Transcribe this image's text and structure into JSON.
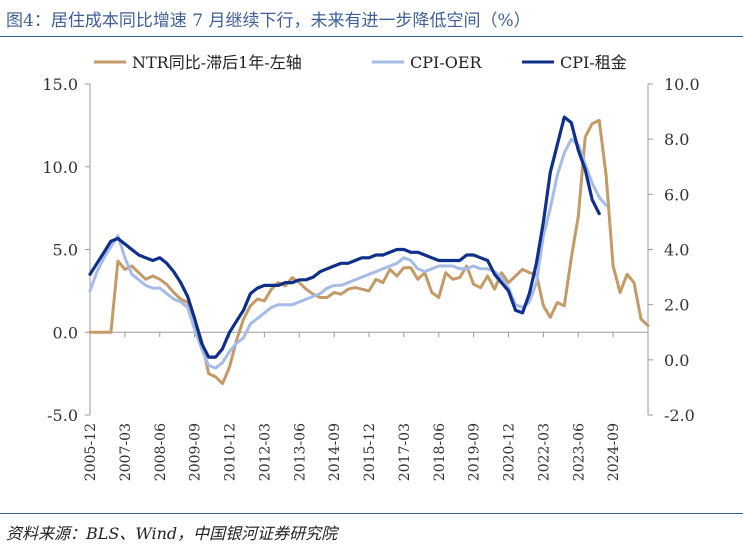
{
  "title": "图4：居住成本同比增速 7 月继续下行，未来有进一步降低空间（%）",
  "source": "资料来源：BLS、Wind，中国银河证券研究院",
  "chart_data": {
    "type": "line",
    "x_tick_labels": [
      "2005-12",
      "2007-03",
      "2008-06",
      "2009-09",
      "2010-12",
      "2012-03",
      "2013-06",
      "2014-09",
      "2015-12",
      "2017-03",
      "2018-06",
      "2019-09",
      "2020-12",
      "2022-03",
      "2023-06",
      "2024-09"
    ],
    "y_left": {
      "ticks": [
        "-5.0",
        "0.0",
        "5.0",
        "10.0",
        "15.0"
      ],
      "range": [
        -5,
        15
      ]
    },
    "y_right": {
      "ticks": [
        "-2.0",
        "0.0",
        "2.0",
        "4.0",
        "6.0",
        "8.0",
        "10.0"
      ],
      "range": [
        -2,
        10
      ]
    },
    "grid": false,
    "legend_position": "top",
    "series": [
      {
        "name": "NTR同比-滞后1年-左轴",
        "axis": "left",
        "color": "#c49a66",
        "points": [
          [
            "2005-12",
            0.0
          ],
          [
            "2006-03",
            0.0
          ],
          [
            "2006-06",
            0.0
          ],
          [
            "2006-09",
            0.0
          ],
          [
            "2006-12",
            4.3
          ],
          [
            "2007-03",
            3.8
          ],
          [
            "2007-06",
            4.0
          ],
          [
            "2007-09",
            3.6
          ],
          [
            "2007-12",
            3.2
          ],
          [
            "2008-03",
            3.4
          ],
          [
            "2008-06",
            3.2
          ],
          [
            "2008-09",
            2.9
          ],
          [
            "2008-12",
            2.4
          ],
          [
            "2009-03",
            2.0
          ],
          [
            "2009-06",
            1.8
          ],
          [
            "2009-09",
            0.8
          ],
          [
            "2009-12",
            -0.5
          ],
          [
            "2010-03",
            -2.5
          ],
          [
            "2010-06",
            -2.7
          ],
          [
            "2010-09",
            -3.1
          ],
          [
            "2010-12",
            -2.1
          ],
          [
            "2011-03",
            -0.5
          ],
          [
            "2011-06",
            0.8
          ],
          [
            "2011-09",
            1.6
          ],
          [
            "2011-12",
            2.0
          ],
          [
            "2012-03",
            1.9
          ],
          [
            "2012-06",
            2.6
          ],
          [
            "2012-09",
            3.0
          ],
          [
            "2012-12",
            2.8
          ],
          [
            "2013-03",
            3.3
          ],
          [
            "2013-06",
            3.0
          ],
          [
            "2013-09",
            2.6
          ],
          [
            "2013-12",
            2.3
          ],
          [
            "2014-03",
            2.1
          ],
          [
            "2014-06",
            2.1
          ],
          [
            "2014-09",
            2.4
          ],
          [
            "2014-12",
            2.3
          ],
          [
            "2015-03",
            2.6
          ],
          [
            "2015-06",
            2.7
          ],
          [
            "2015-09",
            2.6
          ],
          [
            "2015-12",
            2.5
          ],
          [
            "2016-03",
            3.2
          ],
          [
            "2016-06",
            3.0
          ],
          [
            "2016-09",
            3.8
          ],
          [
            "2016-12",
            3.4
          ],
          [
            "2017-03",
            3.9
          ],
          [
            "2017-06",
            3.9
          ],
          [
            "2017-09",
            3.2
          ],
          [
            "2017-12",
            3.6
          ],
          [
            "2018-03",
            2.4
          ],
          [
            "2018-06",
            2.1
          ],
          [
            "2018-09",
            3.6
          ],
          [
            "2018-12",
            3.2
          ],
          [
            "2019-03",
            3.3
          ],
          [
            "2019-06",
            4.0
          ],
          [
            "2019-09",
            2.9
          ],
          [
            "2019-12",
            2.7
          ],
          [
            "2020-03",
            3.4
          ],
          [
            "2020-06",
            2.6
          ],
          [
            "2020-09",
            3.6
          ],
          [
            "2020-12",
            3.0
          ],
          [
            "2021-03",
            3.4
          ],
          [
            "2021-06",
            3.8
          ],
          [
            "2021-09",
            3.6
          ],
          [
            "2021-12",
            3.5
          ],
          [
            "2022-03",
            1.6
          ],
          [
            "2022-06",
            0.9
          ],
          [
            "2022-09",
            1.8
          ],
          [
            "2022-12",
            1.6
          ],
          [
            "2023-03",
            4.5
          ],
          [
            "2023-06",
            7.0
          ],
          [
            "2023-09",
            11.8
          ],
          [
            "2023-12",
            12.6
          ],
          [
            "2024-03",
            12.8
          ],
          [
            "2024-06",
            9.5
          ],
          [
            "2024-09",
            4.0
          ],
          [
            "2024-12",
            2.4
          ],
          [
            "2025-03",
            3.5
          ],
          [
            "2025-06",
            3.0
          ],
          [
            "2025-09",
            0.8
          ],
          [
            "2025-12",
            0.4
          ]
        ]
      },
      {
        "name": "CPI-OER",
        "axis": "right",
        "color": "#a6bce6",
        "points": [
          [
            "2005-12",
            2.5
          ],
          [
            "2006-03",
            3.2
          ],
          [
            "2006-06",
            3.7
          ],
          [
            "2006-09",
            4.1
          ],
          [
            "2006-12",
            4.5
          ],
          [
            "2007-03",
            3.7
          ],
          [
            "2007-06",
            3.1
          ],
          [
            "2007-09",
            2.9
          ],
          [
            "2007-12",
            2.7
          ],
          [
            "2008-03",
            2.6
          ],
          [
            "2008-06",
            2.6
          ],
          [
            "2008-09",
            2.4
          ],
          [
            "2008-12",
            2.2
          ],
          [
            "2009-03",
            2.1
          ],
          [
            "2009-06",
            1.9
          ],
          [
            "2009-09",
            1.1
          ],
          [
            "2009-12",
            0.4
          ],
          [
            "2010-03",
            -0.2
          ],
          [
            "2010-06",
            -0.3
          ],
          [
            "2010-09",
            -0.1
          ],
          [
            "2010-12",
            0.3
          ],
          [
            "2011-03",
            0.6
          ],
          [
            "2011-06",
            0.8
          ],
          [
            "2011-09",
            1.3
          ],
          [
            "2011-12",
            1.5
          ],
          [
            "2012-03",
            1.7
          ],
          [
            "2012-06",
            1.9
          ],
          [
            "2012-09",
            2.0
          ],
          [
            "2012-12",
            2.0
          ],
          [
            "2013-03",
            2.0
          ],
          [
            "2013-06",
            2.1
          ],
          [
            "2013-09",
            2.2
          ],
          [
            "2013-12",
            2.3
          ],
          [
            "2014-03",
            2.4
          ],
          [
            "2014-06",
            2.6
          ],
          [
            "2014-09",
            2.7
          ],
          [
            "2014-12",
            2.7
          ],
          [
            "2015-03",
            2.8
          ],
          [
            "2015-06",
            2.9
          ],
          [
            "2015-09",
            3.0
          ],
          [
            "2015-12",
            3.1
          ],
          [
            "2016-03",
            3.2
          ],
          [
            "2016-06",
            3.3
          ],
          [
            "2016-09",
            3.4
          ],
          [
            "2016-12",
            3.5
          ],
          [
            "2017-03",
            3.7
          ],
          [
            "2017-06",
            3.6
          ],
          [
            "2017-09",
            3.3
          ],
          [
            "2017-12",
            3.2
          ],
          [
            "2018-03",
            3.3
          ],
          [
            "2018-06",
            3.4
          ],
          [
            "2018-09",
            3.4
          ],
          [
            "2018-12",
            3.4
          ],
          [
            "2019-03",
            3.3
          ],
          [
            "2019-06",
            3.3
          ],
          [
            "2019-09",
            3.4
          ],
          [
            "2019-12",
            3.3
          ],
          [
            "2020-03",
            3.3
          ],
          [
            "2020-06",
            3.2
          ],
          [
            "2020-09",
            3.0
          ],
          [
            "2020-12",
            2.6
          ],
          [
            "2021-03",
            2.0
          ],
          [
            "2021-06",
            1.9
          ],
          [
            "2021-09",
            2.1
          ],
          [
            "2021-12",
            2.8
          ],
          [
            "2022-03",
            4.5
          ],
          [
            "2022-06",
            5.5
          ],
          [
            "2022-09",
            6.7
          ],
          [
            "2022-12",
            7.5
          ],
          [
            "2023-03",
            8.0
          ],
          [
            "2023-06",
            7.8
          ],
          [
            "2023-09",
            7.1
          ],
          [
            "2023-12",
            6.4
          ],
          [
            "2024-03",
            5.9
          ],
          [
            "2024-06",
            5.6
          ]
        ]
      },
      {
        "name": "CPI-租金",
        "axis": "right",
        "color": "#0f2f8a",
        "points": [
          [
            "2005-12",
            3.1
          ],
          [
            "2006-03",
            3.5
          ],
          [
            "2006-06",
            3.9
          ],
          [
            "2006-09",
            4.3
          ],
          [
            "2006-12",
            4.4
          ],
          [
            "2007-03",
            4.2
          ],
          [
            "2007-06",
            4.0
          ],
          [
            "2007-09",
            3.8
          ],
          [
            "2007-12",
            3.7
          ],
          [
            "2008-03",
            3.6
          ],
          [
            "2008-06",
            3.7
          ],
          [
            "2008-09",
            3.5
          ],
          [
            "2008-12",
            3.2
          ],
          [
            "2009-03",
            2.8
          ],
          [
            "2009-06",
            2.3
          ],
          [
            "2009-09",
            1.5
          ],
          [
            "2009-12",
            0.6
          ],
          [
            "2010-03",
            0.1
          ],
          [
            "2010-06",
            0.1
          ],
          [
            "2010-09",
            0.4
          ],
          [
            "2010-12",
            1.0
          ],
          [
            "2011-03",
            1.4
          ],
          [
            "2011-06",
            1.8
          ],
          [
            "2011-09",
            2.4
          ],
          [
            "2011-12",
            2.6
          ],
          [
            "2012-03",
            2.7
          ],
          [
            "2012-06",
            2.7
          ],
          [
            "2012-09",
            2.7
          ],
          [
            "2012-12",
            2.8
          ],
          [
            "2013-03",
            2.8
          ],
          [
            "2013-06",
            2.9
          ],
          [
            "2013-09",
            2.9
          ],
          [
            "2013-12",
            3.0
          ],
          [
            "2014-03",
            3.2
          ],
          [
            "2014-06",
            3.3
          ],
          [
            "2014-09",
            3.4
          ],
          [
            "2014-12",
            3.5
          ],
          [
            "2015-03",
            3.5
          ],
          [
            "2015-06",
            3.6
          ],
          [
            "2015-09",
            3.7
          ],
          [
            "2015-12",
            3.7
          ],
          [
            "2016-03",
            3.8
          ],
          [
            "2016-06",
            3.8
          ],
          [
            "2016-09",
            3.9
          ],
          [
            "2016-12",
            4.0
          ],
          [
            "2017-03",
            4.0
          ],
          [
            "2017-06",
            3.9
          ],
          [
            "2017-09",
            3.9
          ],
          [
            "2017-12",
            3.8
          ],
          [
            "2018-03",
            3.7
          ],
          [
            "2018-06",
            3.6
          ],
          [
            "2018-09",
            3.6
          ],
          [
            "2018-12",
            3.6
          ],
          [
            "2019-03",
            3.6
          ],
          [
            "2019-06",
            3.8
          ],
          [
            "2019-09",
            3.8
          ],
          [
            "2019-12",
            3.7
          ],
          [
            "2020-03",
            3.6
          ],
          [
            "2020-06",
            3.1
          ],
          [
            "2020-09",
            2.8
          ],
          [
            "2020-12",
            2.5
          ],
          [
            "2021-03",
            1.8
          ],
          [
            "2021-06",
            1.7
          ],
          [
            "2021-09",
            2.4
          ],
          [
            "2021-12",
            3.5
          ],
          [
            "2022-03",
            5.0
          ],
          [
            "2022-06",
            6.8
          ],
          [
            "2022-09",
            7.8
          ],
          [
            "2022-12",
            8.8
          ],
          [
            "2023-03",
            8.6
          ],
          [
            "2023-06",
            7.6
          ],
          [
            "2023-09",
            6.9
          ],
          [
            "2023-12",
            5.8
          ],
          [
            "2024-03",
            5.3
          ]
        ]
      }
    ]
  }
}
